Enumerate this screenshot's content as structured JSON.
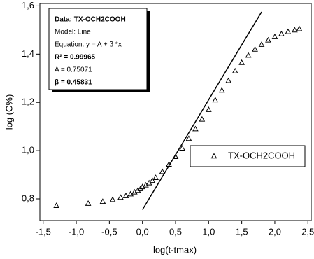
{
  "chart_data": {
    "type": "scatter",
    "x_label": "log(t-tmax)",
    "y_label": "log (C%)",
    "xlim": [
      -1.55,
      2.55
    ],
    "ylim": [
      0.71,
      1.61
    ],
    "xticks": [
      {
        "value": -1.5,
        "label": "-1,5"
      },
      {
        "value": -1.0,
        "label": "-1,0"
      },
      {
        "value": -0.5,
        "label": "-0,5"
      },
      {
        "value": 0,
        "label": "0,0"
      },
      {
        "value": 0.5,
        "label": "0,5"
      },
      {
        "value": 1.0,
        "label": "1,0"
      },
      {
        "value": 1.5,
        "label": "1,5"
      },
      {
        "value": 2.0,
        "label": "2,0"
      },
      {
        "value": 2.5,
        "label": "2,5"
      }
    ],
    "yticks": [
      {
        "value": 0.8,
        "label": "0,8"
      },
      {
        "value": 1.0,
        "label": "1,0"
      },
      {
        "value": 1.2,
        "label": "1,2"
      },
      {
        "value": 1.4,
        "label": "1,4"
      },
      {
        "value": 1.6,
        "label": "1,6"
      }
    ],
    "series": [
      {
        "name": "TX-OCH2COOH",
        "color": "#000000",
        "x": [
          -1.3,
          -0.82,
          -0.6,
          -0.45,
          -0.33,
          -0.25,
          -0.18,
          -0.12,
          -0.07,
          -0.03,
          0.0,
          0.05,
          0.1,
          0.15,
          0.2,
          0.3,
          0.4,
          0.5,
          0.6,
          0.7,
          0.8,
          0.9,
          1.0,
          1.1,
          1.2,
          1.3,
          1.4,
          1.5,
          1.6,
          1.7,
          1.8,
          1.9,
          2.0,
          2.1,
          2.2,
          2.3,
          2.37
        ],
        "values": [
          0.772,
          0.781,
          0.789,
          0.797,
          0.806,
          0.813,
          0.82,
          0.828,
          0.835,
          0.842,
          0.85,
          0.857,
          0.866,
          0.876,
          0.888,
          0.913,
          0.943,
          0.975,
          1.01,
          1.05,
          1.09,
          1.13,
          1.17,
          1.21,
          1.25,
          1.29,
          1.33,
          1.365,
          1.395,
          1.42,
          1.44,
          1.458,
          1.472,
          1.484,
          1.493,
          1.5,
          1.505
        ]
      }
    ],
    "fit": {
      "color": "#000000",
      "x": [
        0.0,
        1.8
      ],
      "values": [
        0.755,
        1.575
      ]
    },
    "annotation": [
      "Data: TX-OCH2COOH",
      "Model: Line",
      "Equation: y = A + β *x",
      "R² = 0.99965",
      "A = 0.75071",
      "β = 0.45831"
    ]
  }
}
